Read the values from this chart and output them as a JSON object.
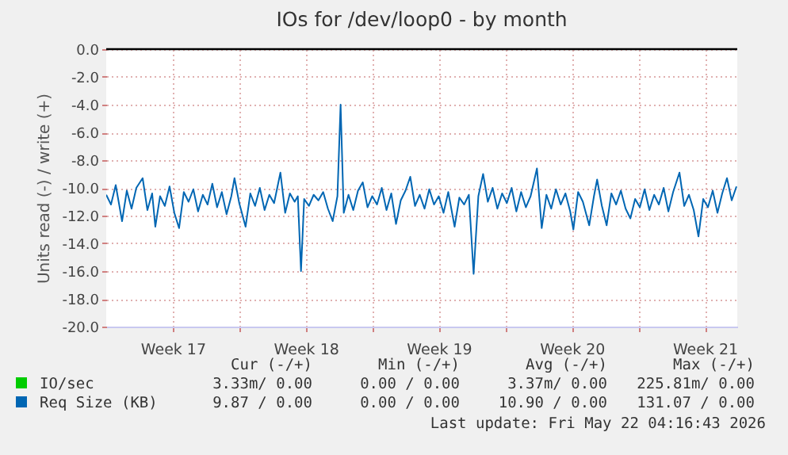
{
  "chart_data": {
    "type": "line",
    "title": "IOs for /dev/loop0 - by month",
    "ylabel": "Units read (-) / write (+)",
    "xlim": [
      "2026-04-20T00:00",
      "2026-05-23T05:00"
    ],
    "ylim": [
      -20,
      0
    ],
    "xticks": [
      {
        "value": "2026-04-23T12:00",
        "label": "Week 17"
      },
      {
        "value": "2026-04-27T00:00",
        "label": null
      },
      {
        "value": "2026-04-30T12:00",
        "label": "Week 18"
      },
      {
        "value": "2026-05-04T00:00",
        "label": null
      },
      {
        "value": "2026-05-07T12:00",
        "label": "Week 19"
      },
      {
        "value": "2026-05-11T00:00",
        "label": null
      },
      {
        "value": "2026-05-14T12:00",
        "label": "Week 20"
      },
      {
        "value": "2026-05-18T00:00",
        "label": null
      },
      {
        "value": "2026-05-21T12:00",
        "label": "Week 21"
      }
    ],
    "yticks": [
      {
        "value": 0,
        "label": "0.0"
      },
      {
        "value": -2,
        "label": "-2.0"
      },
      {
        "value": -4,
        "label": "-4.0"
      },
      {
        "value": -6,
        "label": "-6.0"
      },
      {
        "value": -8,
        "label": "-8.0"
      },
      {
        "value": -10,
        "label": "-10.0"
      },
      {
        "value": -12,
        "label": "-12.0"
      },
      {
        "value": -14,
        "label": "-14.0"
      },
      {
        "value": -16,
        "label": "-16.0"
      },
      {
        "value": -18,
        "label": "-18.0"
      },
      {
        "value": -20,
        "label": "-20.0"
      }
    ],
    "grid": true,
    "legend": "bottom",
    "ref_lines": [
      {
        "axis": "y",
        "value": 0,
        "color": "#000000"
      }
    ],
    "series": [
      {
        "name": "IO/sec",
        "color": "#00cc00"
      },
      {
        "name": "Req Size (KB)",
        "color": "#0066b3",
        "x": [
          "2026-04-20T00:00",
          "2026-04-20T06:00",
          "2026-04-20T12:00",
          "2026-04-20T20:00",
          "2026-04-21T02:00",
          "2026-04-21T08:00",
          "2026-04-21T14:00",
          "2026-04-21T22:00",
          "2026-04-22T04:00",
          "2026-04-22T10:00",
          "2026-04-22T14:00",
          "2026-04-22T20:00",
          "2026-04-23T02:00",
          "2026-04-23T08:00",
          "2026-04-23T14:00",
          "2026-04-23T20:00",
          "2026-04-24T02:00",
          "2026-04-24T08:00",
          "2026-04-24T14:00",
          "2026-04-24T20:00",
          "2026-04-25T02:00",
          "2026-04-25T08:00",
          "2026-04-25T14:00",
          "2026-04-25T20:00",
          "2026-04-26T02:00",
          "2026-04-26T08:00",
          "2026-04-26T14:00",
          "2026-04-26T18:00",
          "2026-04-27T00:00",
          "2026-04-27T08:00",
          "2026-04-27T14:00",
          "2026-04-27T20:00",
          "2026-04-28T02:00",
          "2026-04-28T08:00",
          "2026-04-28T14:00",
          "2026-04-28T20:00",
          "2026-04-29T04:00",
          "2026-04-29T10:00",
          "2026-04-29T16:00",
          "2026-04-29T22:00",
          "2026-04-30T02:00",
          "2026-04-30T06:00",
          "2026-04-30T10:00",
          "2026-04-30T16:00",
          "2026-04-30T22:00",
          "2026-05-01T04:00",
          "2026-05-01T10:00",
          "2026-05-01T16:00",
          "2026-05-01T22:00",
          "2026-05-02T04:00",
          "2026-05-02T08:00",
          "2026-05-02T12:00",
          "2026-05-02T18:00",
          "2026-05-03T00:00",
          "2026-05-03T06:00",
          "2026-05-03T12:00",
          "2026-05-03T18:00",
          "2026-05-04T00:00",
          "2026-05-04T06:00",
          "2026-05-04T12:00",
          "2026-05-04T18:00",
          "2026-05-05T00:00",
          "2026-05-05T06:00",
          "2026-05-05T12:00",
          "2026-05-05T18:00",
          "2026-05-06T00:00",
          "2026-05-06T06:00",
          "2026-05-06T12:00",
          "2026-05-06T18:00",
          "2026-05-07T00:00",
          "2026-05-07T06:00",
          "2026-05-07T12:00",
          "2026-05-07T18:00",
          "2026-05-08T00:00",
          "2026-05-08T08:00",
          "2026-05-08T14:00",
          "2026-05-08T20:00",
          "2026-05-09T02:00",
          "2026-05-09T08:00",
          "2026-05-09T14:00",
          "2026-05-09T20:00",
          "2026-05-10T02:00",
          "2026-05-10T08:00",
          "2026-05-10T14:00",
          "2026-05-10T20:00",
          "2026-05-11T02:00",
          "2026-05-11T08:00",
          "2026-05-11T14:00",
          "2026-05-11T20:00",
          "2026-05-12T02:00",
          "2026-05-12T08:00",
          "2026-05-12T16:00",
          "2026-05-12T22:00",
          "2026-05-13T04:00",
          "2026-05-13T10:00",
          "2026-05-13T16:00",
          "2026-05-13T22:00",
          "2026-05-14T04:00",
          "2026-05-14T10:00",
          "2026-05-14T14:00",
          "2026-05-14T20:00",
          "2026-05-15T02:00",
          "2026-05-15T10:00",
          "2026-05-15T16:00",
          "2026-05-15T20:00",
          "2026-05-16T02:00",
          "2026-05-16T08:00",
          "2026-05-16T14:00",
          "2026-05-16T20:00",
          "2026-05-17T02:00",
          "2026-05-17T08:00",
          "2026-05-17T14:00",
          "2026-05-17T20:00",
          "2026-05-18T02:00",
          "2026-05-18T08:00",
          "2026-05-18T14:00",
          "2026-05-18T20:00",
          "2026-05-19T02:00",
          "2026-05-19T08:00",
          "2026-05-19T14:00",
          "2026-05-19T20:00",
          "2026-05-20T04:00",
          "2026-05-20T10:00",
          "2026-05-20T16:00",
          "2026-05-20T22:00",
          "2026-05-21T04:00",
          "2026-05-21T10:00",
          "2026-05-21T16:00",
          "2026-05-21T22:00",
          "2026-05-22T04:00",
          "2026-05-22T10:00",
          "2026-05-22T16:00",
          "2026-05-22T22:00",
          "2026-05-23T04:00"
        ],
        "values": [
          -10.5,
          -11.2,
          -9.8,
          -12.4,
          -10.2,
          -11.5,
          -10.0,
          -9.3,
          -11.6,
          -10.4,
          -12.8,
          -10.6,
          -11.3,
          -9.9,
          -11.8,
          -12.9,
          -10.3,
          -11.0,
          -10.1,
          -11.7,
          -10.5,
          -11.2,
          -9.7,
          -11.4,
          -10.3,
          -11.9,
          -10.6,
          -9.3,
          -11.1,
          -12.8,
          -10.4,
          -11.3,
          -10.0,
          -11.6,
          -10.5,
          -11.1,
          -8.9,
          -11.8,
          -10.4,
          -11.0,
          -10.6,
          -16.0,
          -10.8,
          -11.3,
          -10.5,
          -10.9,
          -10.3,
          -11.5,
          -12.4,
          -10.6,
          -4.0,
          -11.8,
          -10.5,
          -11.6,
          -10.2,
          -9.6,
          -11.4,
          -10.6,
          -11.2,
          -10.0,
          -11.6,
          -10.4,
          -12.6,
          -10.9,
          -10.2,
          -9.2,
          -11.3,
          -10.5,
          -11.5,
          -10.1,
          -11.2,
          -10.6,
          -11.8,
          -10.3,
          -12.8,
          -10.7,
          -11.2,
          -10.5,
          -16.2,
          -10.6,
          -9.0,
          -11.0,
          -10.0,
          -11.5,
          -10.4,
          -11.1,
          -10.0,
          -11.7,
          -10.3,
          -11.4,
          -10.6,
          -8.6,
          -12.9,
          -10.5,
          -11.5,
          -10.1,
          -11.2,
          -10.4,
          -11.7,
          -13.0,
          -10.3,
          -11.0,
          -12.7,
          -10.6,
          -9.4,
          -11.3,
          -12.7,
          -10.4,
          -11.2,
          -10.2,
          -11.5,
          -12.2,
          -10.8,
          -11.4,
          -10.1,
          -11.6,
          -10.5,
          -11.2,
          -10.0,
          -11.7,
          -10.3,
          -8.9,
          -11.3,
          -10.5,
          -11.6,
          -13.5,
          -10.8,
          -11.4,
          -10.2,
          -11.8,
          -10.4,
          -9.3,
          -10.9,
          -9.9
        ]
      }
    ],
    "annotations": [
      "Cur (-/+)",
      "Min (-/+)",
      "Avg (-/+)",
      "Max (-/+)",
      "3.33m/ 0.00",
      "0.00 / 0.00",
      "3.37m/ 0.00",
      "225.81m/ 0.00",
      "9.87 / 0.00",
      "0.00 / 0.00",
      "10.90 / 0.00",
      "131.07 / 0.00",
      "Last update: Fri May 22 04:16:43 2026"
    ]
  }
}
